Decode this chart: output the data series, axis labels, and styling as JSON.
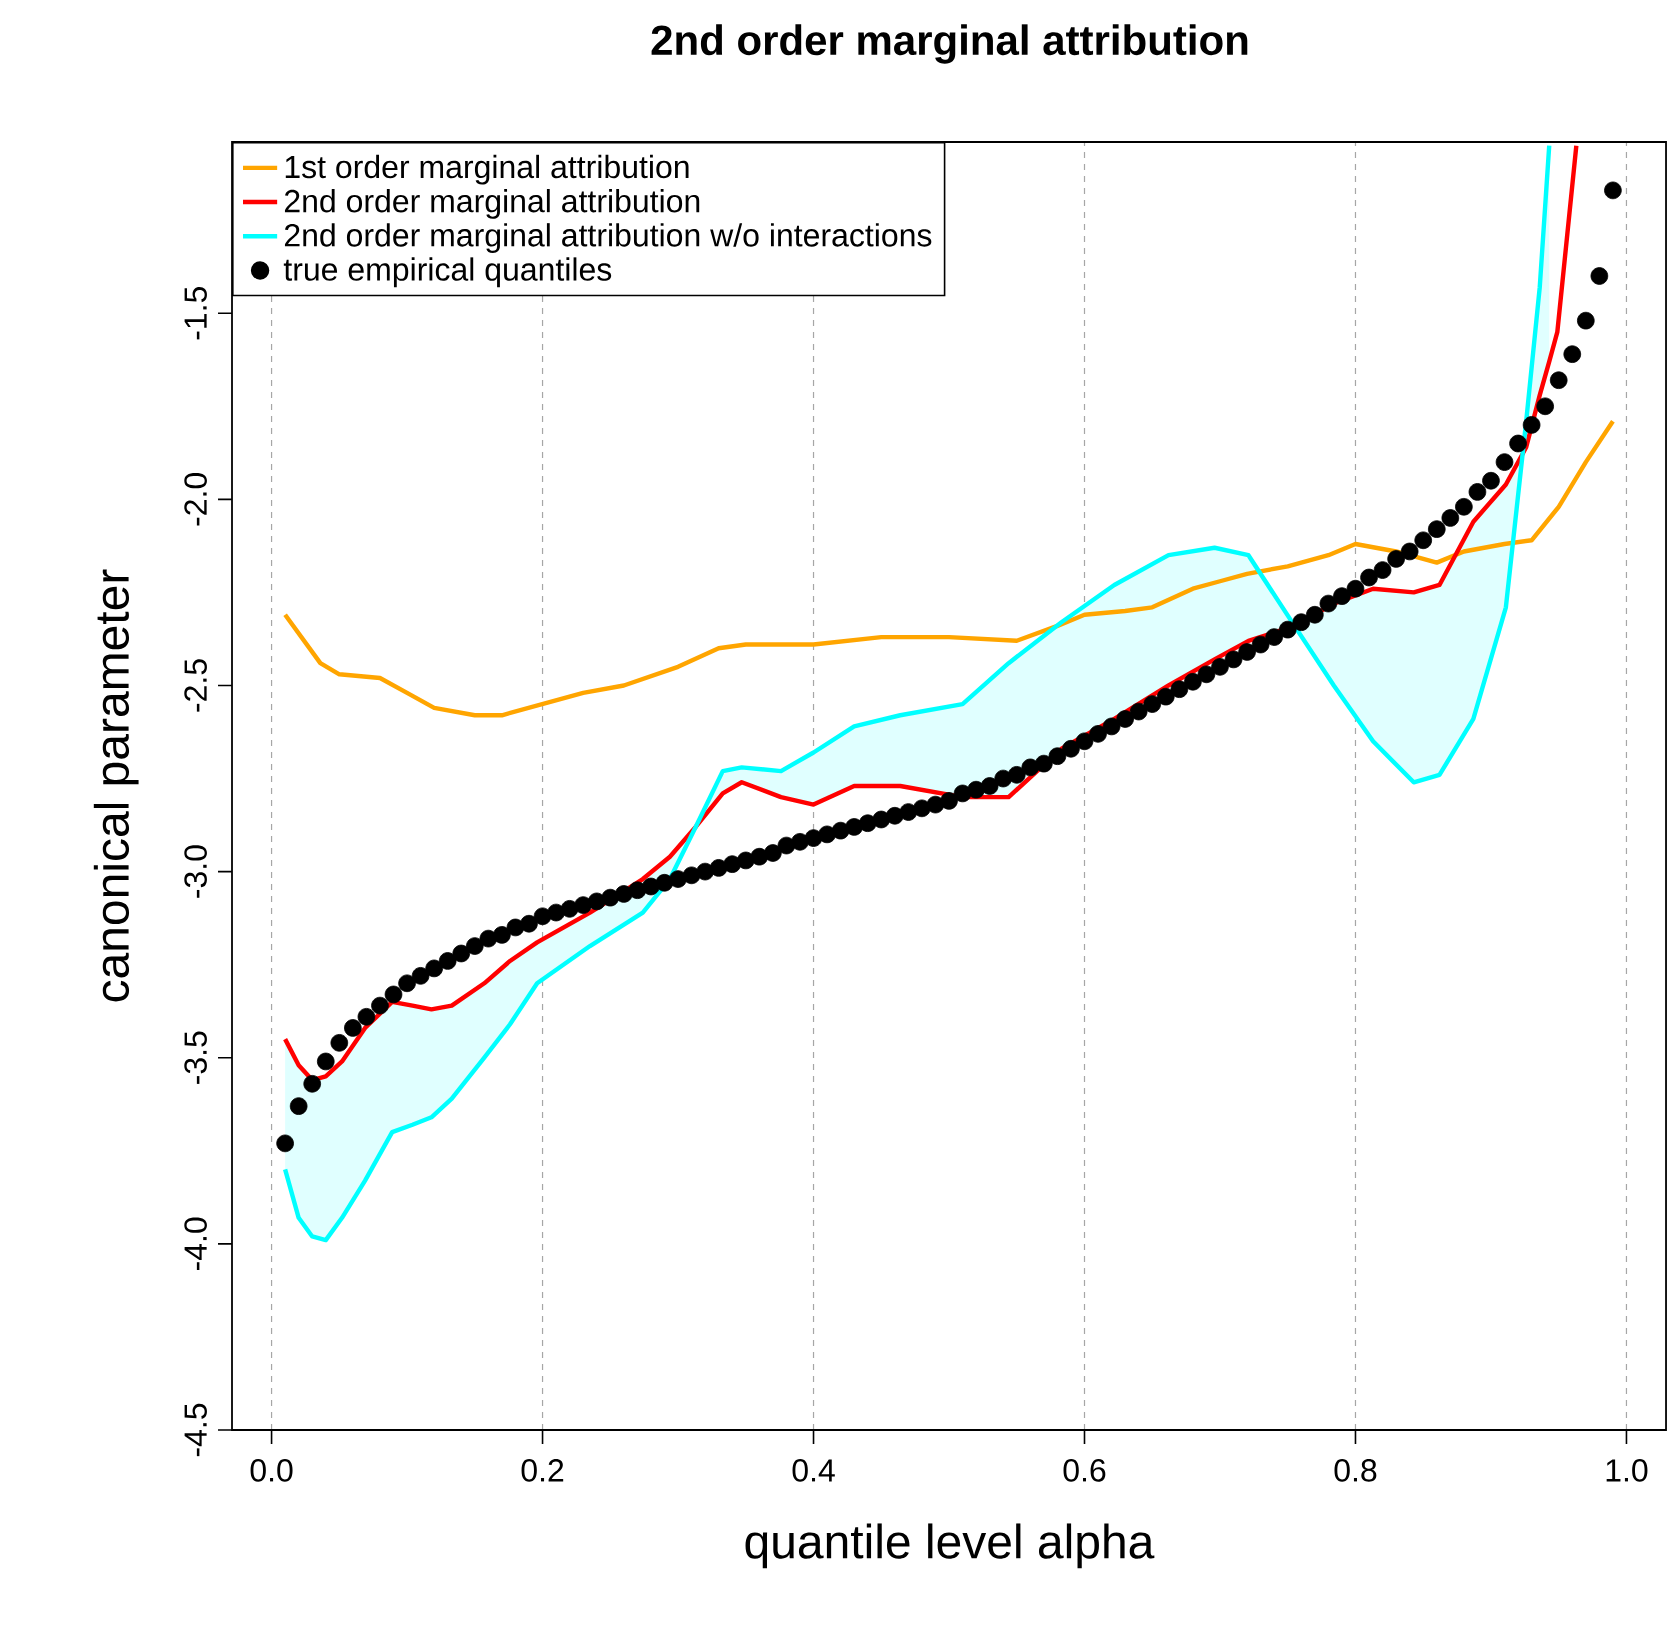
{
  "chart_data": {
    "type": "line",
    "title": "2nd order marginal attribution",
    "xlabel": "quantile level alpha",
    "ylabel": "canonical parameter",
    "xlim": [
      -0.0292,
      1.0292
    ],
    "ylim": [
      -4.5,
      -1.04
    ],
    "xticks": [
      {
        "value": 0,
        "label": "0.0"
      },
      0.2,
      0.4,
      0.6,
      0.8,
      {
        "value": 1,
        "label": "1.0"
      }
    ],
    "yticks": [
      -4.5,
      {
        "value": -4,
        "label": "-4.0"
      },
      -3.5,
      {
        "value": -3,
        "label": "-3.0"
      },
      -2.5,
      {
        "value": -2,
        "label": "-2.0"
      },
      -1.5
    ],
    "grid": "x",
    "legend": "top left",
    "line_style": "solid",
    "marker": "none",
    "series": [
      {
        "name": "1st order marginal attribution",
        "color": "#ffa500",
        "x": [
          0.01,
          0.036,
          0.05,
          0.08,
          0.1,
          0.12,
          0.15,
          0.17,
          0.2,
          0.23,
          0.26,
          0.3,
          0.33,
          0.35,
          0.4,
          0.45,
          0.5,
          0.55,
          0.58,
          0.6,
          0.63,
          0.65,
          0.68,
          0.7,
          0.72,
          0.75,
          0.78,
          0.8,
          0.83,
          0.86,
          0.88,
          0.91,
          0.93,
          0.95,
          0.97,
          0.99
        ],
        "values": [
          -2.31,
          -2.44,
          -2.47,
          -2.48,
          -2.52,
          -2.56,
          -2.58,
          -2.58,
          -2.55,
          -2.52,
          -2.5,
          -2.45,
          -2.4,
          -2.39,
          -2.39,
          -2.37,
          -2.37,
          -2.38,
          -2.34,
          -2.31,
          -2.3,
          -2.29,
          -2.24,
          -2.22,
          -2.2,
          -2.18,
          -2.15,
          -2.12,
          -2.14,
          -2.17,
          -2.14,
          -2.12,
          -2.11,
          -2.02,
          -1.9,
          -1.79
        ]
      },
      {
        "name": "2nd order marginal attribution",
        "color": "#ff0000",
        "x": [
          0.01,
          0.02,
          0.03,
          0.04,
          0.052,
          0.069,
          0.089,
          0.104,
          0.118,
          0.133,
          0.157,
          0.176,
          0.196,
          0.235,
          0.274,
          0.294,
          0.313,
          0.333,
          0.347,
          0.376,
          0.4,
          0.43,
          0.464,
          0.51,
          0.544,
          0.583,
          0.622,
          0.662,
          0.696,
          0.721,
          0.755,
          0.784,
          0.813,
          0.843,
          0.862,
          0.887,
          0.911,
          0.926,
          0.936,
          0.943,
          0.949,
          0.963
        ],
        "values": [
          -3.45,
          -3.52,
          -3.56,
          -3.55,
          -3.51,
          -3.42,
          -3.35,
          -3.36,
          -3.37,
          -3.36,
          -3.3,
          -3.24,
          -3.19,
          -3.11,
          -3.02,
          -2.96,
          -2.88,
          -2.79,
          -2.76,
          -2.8,
          -2.82,
          -2.77,
          -2.77,
          -2.8,
          -2.8,
          -2.67,
          -2.59,
          -2.5,
          -2.43,
          -2.38,
          -2.34,
          -2.28,
          -2.24,
          -2.25,
          -2.23,
          -2.06,
          -1.96,
          -1.86,
          -1.72,
          -1.63,
          -1.55,
          -1.05
        ]
      },
      {
        "name": "2nd order marginal attribution w/o interactions",
        "color": "#00ffff",
        "x": [
          0.01,
          0.02,
          0.03,
          0.04,
          0.052,
          0.069,
          0.089,
          0.104,
          0.118,
          0.133,
          0.157,
          0.176,
          0.196,
          0.235,
          0.274,
          0.294,
          0.313,
          0.333,
          0.347,
          0.376,
          0.4,
          0.43,
          0.464,
          0.51,
          0.544,
          0.583,
          0.622,
          0.662,
          0.696,
          0.721,
          0.755,
          0.784,
          0.813,
          0.843,
          0.862,
          0.887,
          0.911,
          0.926,
          0.936,
          0.943
        ],
        "values": [
          -3.8,
          -3.93,
          -3.98,
          -3.99,
          -3.93,
          -3.83,
          -3.7,
          -3.68,
          -3.66,
          -3.61,
          -3.5,
          -3.41,
          -3.3,
          -3.2,
          -3.11,
          -3.02,
          -2.88,
          -2.73,
          -2.72,
          -2.73,
          -2.68,
          -2.61,
          -2.58,
          -2.55,
          -2.44,
          -2.33,
          -2.23,
          -2.15,
          -2.13,
          -2.15,
          -2.34,
          -2.5,
          -2.65,
          -2.76,
          -2.74,
          -2.59,
          -2.29,
          -1.79,
          -1.43,
          -1.05
        ],
        "lower": [
          -3.45,
          -3.52,
          -3.56,
          -3.55,
          -3.51,
          -3.42,
          -3.35,
          -3.36,
          -3.37,
          -3.36,
          -3.3,
          -3.24,
          -3.19,
          -3.11,
          -3.02,
          -2.96,
          -2.88,
          -2.79,
          -2.76,
          -2.8,
          -2.82,
          -2.77,
          -2.77,
          -2.8,
          -2.8,
          -2.67,
          -2.59,
          -2.5,
          -2.43,
          -2.38,
          -2.34,
          -2.28,
          -2.24,
          -2.25,
          -2.23,
          -2.06,
          -1.96,
          -1.86,
          -1.72,
          -1.63
        ],
        "upper": [
          -3.8,
          -3.93,
          -3.98,
          -3.99,
          -3.93,
          -3.83,
          -3.7,
          -3.68,
          -3.66,
          -3.61,
          -3.5,
          -3.41,
          -3.3,
          -3.2,
          -3.11,
          -3.02,
          -2.88,
          -2.73,
          -2.72,
          -2.73,
          -2.68,
          -2.61,
          -2.58,
          -2.55,
          -2.44,
          -2.33,
          -2.23,
          -2.15,
          -2.13,
          -2.15,
          -2.34,
          -2.5,
          -2.65,
          -2.76,
          -2.74,
          -2.59,
          -2.29,
          -1.79,
          -1.43,
          -1.05
        ]
      },
      {
        "name": "true empirical quantiles",
        "type": "scatter",
        "marker": "circle",
        "color": "#000000",
        "x": [
          0.01,
          0.02,
          0.03,
          0.04,
          0.05,
          0.06,
          0.07,
          0.08,
          0.09,
          0.1,
          0.11,
          0.12,
          0.13,
          0.14,
          0.15,
          0.16,
          0.17,
          0.18,
          0.19,
          0.2,
          0.21,
          0.22,
          0.23,
          0.24,
          0.25,
          0.26,
          0.27,
          0.28,
          0.29,
          0.3,
          0.31,
          0.32,
          0.33,
          0.34,
          0.35,
          0.36,
          0.37,
          0.38,
          0.39,
          0.4,
          0.41,
          0.42,
          0.43,
          0.44,
          0.45,
          0.46,
          0.47,
          0.48,
          0.49,
          0.5,
          0.51,
          0.52,
          0.53,
          0.54,
          0.55,
          0.56,
          0.57,
          0.58,
          0.59,
          0.6,
          0.61,
          0.62,
          0.63,
          0.64,
          0.65,
          0.66,
          0.67,
          0.68,
          0.69,
          0.7,
          0.71,
          0.72,
          0.73,
          0.74,
          0.75,
          0.76,
          0.77,
          0.78,
          0.79,
          0.8,
          0.81,
          0.82,
          0.83,
          0.84,
          0.85,
          0.86,
          0.87,
          0.88,
          0.89,
          0.9,
          0.91,
          0.92,
          0.93,
          0.94,
          0.95,
          0.96,
          0.97,
          0.98,
          0.99
        ],
        "values": [
          -3.73,
          -3.63,
          -3.57,
          -3.51,
          -3.46,
          -3.42,
          -3.39,
          -3.36,
          -3.33,
          -3.3,
          -3.28,
          -3.26,
          -3.24,
          -3.22,
          -3.2,
          -3.18,
          -3.17,
          -3.15,
          -3.14,
          -3.12,
          -3.11,
          -3.1,
          -3.09,
          -3.08,
          -3.07,
          -3.06,
          -3.05,
          -3.04,
          -3.03,
          -3.02,
          -3.01,
          -3.0,
          -2.99,
          -2.98,
          -2.97,
          -2.96,
          -2.95,
          -2.93,
          -2.92,
          -2.91,
          -2.9,
          -2.89,
          -2.88,
          -2.87,
          -2.86,
          -2.85,
          -2.84,
          -2.83,
          -2.82,
          -2.81,
          -2.79,
          -2.78,
          -2.77,
          -2.75,
          -2.74,
          -2.72,
          -2.71,
          -2.69,
          -2.67,
          -2.65,
          -2.63,
          -2.61,
          -2.59,
          -2.57,
          -2.55,
          -2.53,
          -2.51,
          -2.49,
          -2.47,
          -2.45,
          -2.43,
          -2.41,
          -2.39,
          -2.37,
          -2.35,
          -2.33,
          -2.31,
          -2.28,
          -2.26,
          -2.24,
          -2.21,
          -2.19,
          -2.16,
          -2.14,
          -2.11,
          -2.08,
          -2.05,
          -2.02,
          -1.98,
          -1.95,
          -1.9,
          -1.85,
          -1.8,
          -1.75,
          -1.68,
          -1.61,
          -1.52,
          -1.4,
          -1.17
        ]
      }
    ]
  }
}
